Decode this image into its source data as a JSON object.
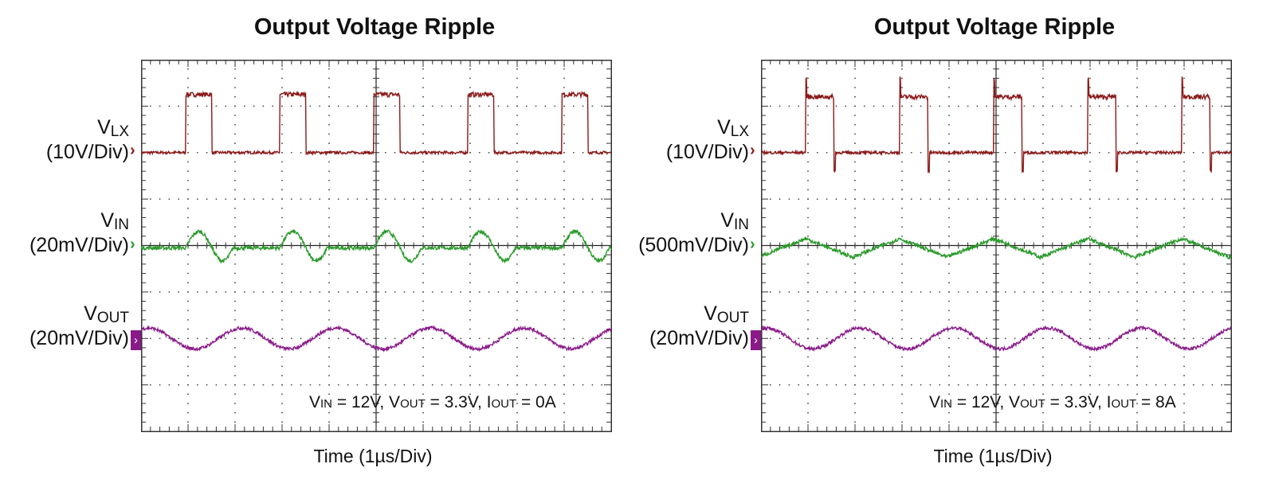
{
  "chart_data": [
    {
      "type": "line",
      "title": "Output Voltage Ripple",
      "xlabel": "Time (1µs/Div)",
      "xlim": [
        0,
        10
      ],
      "x_unit": "µs",
      "grid": true,
      "annotation": {
        "parts": [
          [
            "V",
            ""
          ],
          [
            "IN",
            "sub"
          ],
          [
            " = 12V, V",
            ""
          ],
          [
            "OUT",
            "sub"
          ],
          [
            " = 3.3V, I",
            ""
          ],
          [
            "OUT",
            "sub"
          ],
          [
            " = 0A",
            ""
          ]
        ]
      },
      "conditions": {
        "VIN": "12V",
        "VOUT": "3.3V",
        "IOUT": "0A"
      },
      "channels": [
        {
          "name": "V",
          "sub": "LX",
          "scale": "(10V/Div)",
          "color": "#8b1a1a",
          "kind": "switch",
          "volts_per_div": 10,
          "low": 0,
          "high": 12.5,
          "period_us": 2,
          "first_edge_us": 0.95,
          "duty": 0.28,
          "spike": 0
        },
        {
          "name": "V",
          "sub": "IN",
          "scale": "(20mV/Div)",
          "color": "#2a9a2a",
          "kind": "bump",
          "volts_per_div": 0.02,
          "amplitude": 0.007,
          "period_us": 2,
          "first_edge_us": 0.95,
          "duty": 0.28
        },
        {
          "name": "V",
          "sub": "OUT",
          "scale": "(20mV/Div)",
          "color": "#8a1a8a",
          "kind": "sine",
          "volts_per_div": 0.02,
          "amplitude": 0.0045,
          "period_us": 2,
          "peak_us": 0.15
        }
      ]
    },
    {
      "type": "line",
      "title": "Output Voltage Ripple",
      "xlabel": "Time (1µs/Div)",
      "xlim": [
        0,
        10
      ],
      "x_unit": "µs",
      "grid": true,
      "annotation": {
        "parts": [
          [
            "V",
            ""
          ],
          [
            "IN",
            "sub"
          ],
          [
            " = 12V, V",
            ""
          ],
          [
            "OUT",
            "sub"
          ],
          [
            " = 3.3V, I",
            ""
          ],
          [
            "OUT",
            "sub"
          ],
          [
            " = 8A",
            ""
          ]
        ]
      },
      "conditions": {
        "VIN": "12V",
        "VOUT": "3.3V",
        "IOUT": "8A"
      },
      "channels": [
        {
          "name": "V",
          "sub": "LX",
          "scale": "(10V/Div)",
          "color": "#8b1a1a",
          "kind": "switch",
          "volts_per_div": 10,
          "low": 0,
          "high": 12,
          "period_us": 2,
          "first_edge_us": 0.95,
          "duty": 0.3,
          "spike": 4
        },
        {
          "name": "V",
          "sub": "IN",
          "scale": "(500mV/Div)",
          "color": "#2a9a2a",
          "kind": "triangle",
          "volts_per_div": 0.5,
          "amplitude": 0.1,
          "period_us": 2,
          "peak_us": 0.95
        },
        {
          "name": "V",
          "sub": "OUT",
          "scale": "(20mV/Div)",
          "color": "#8a1a8a",
          "kind": "sine",
          "volts_per_div": 0.02,
          "amplitude": 0.0045,
          "period_us": 2,
          "peak_us": 0.1
        }
      ]
    }
  ]
}
